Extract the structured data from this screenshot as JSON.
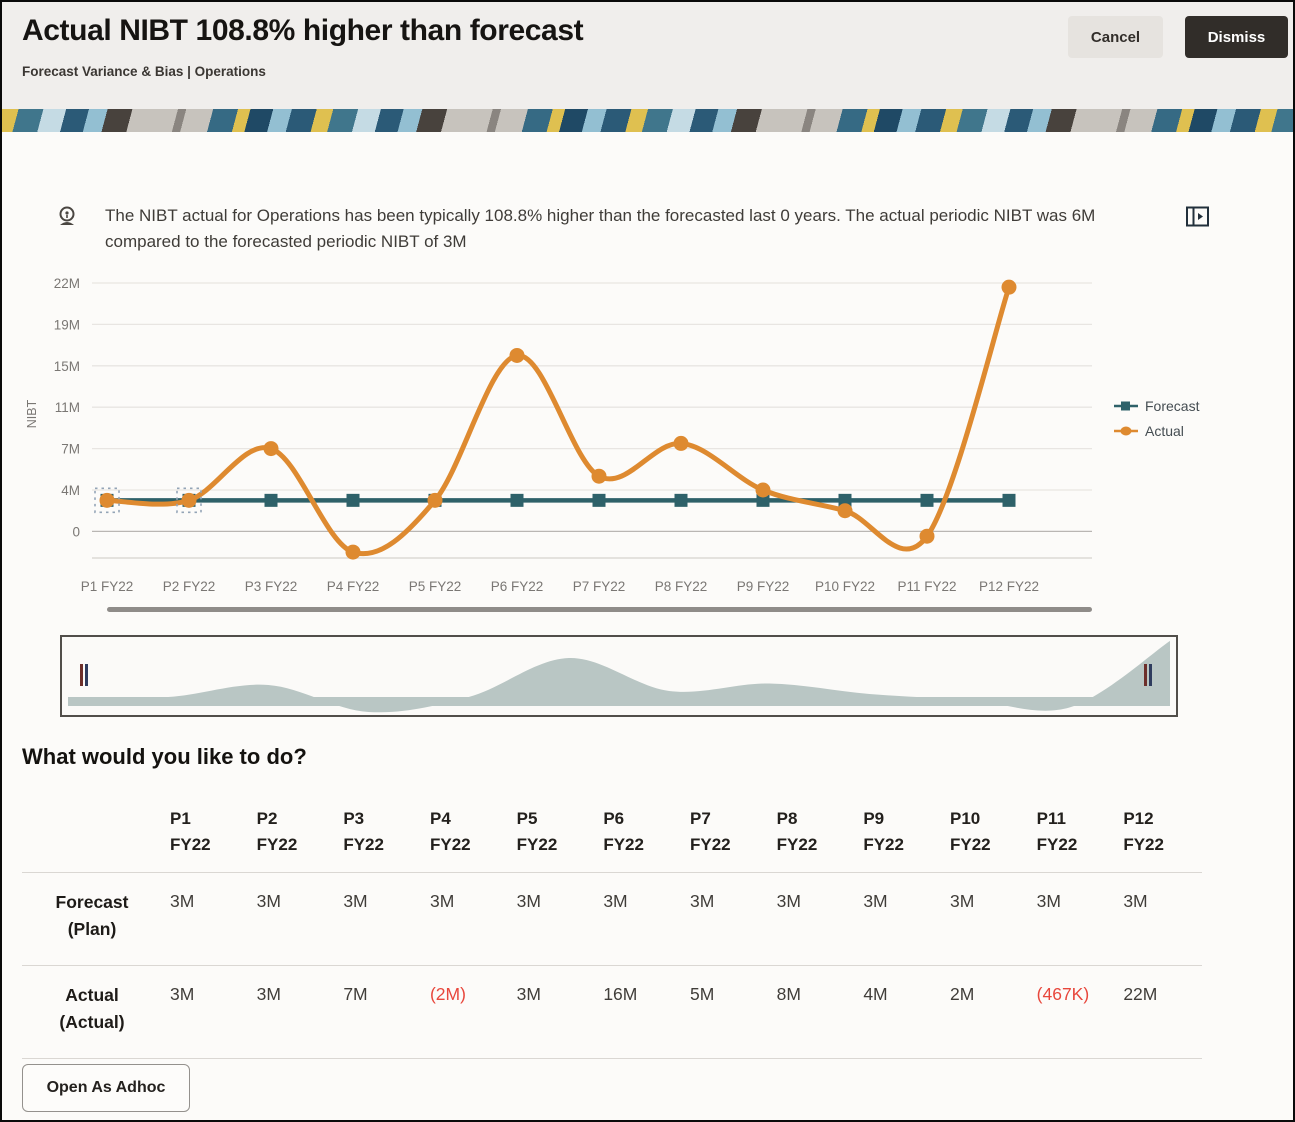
{
  "header": {
    "title": "Actual NIBT 108.8% higher than forecast",
    "breadcrumb": "Forecast Variance & Bias | Operations",
    "cancel_label": "Cancel",
    "dismiss_label": "Dismiss"
  },
  "insight": {
    "text": "The NIBT actual for Operations has been typically 108.8% higher than the forecasted last 0 years. The actual periodic NIBT was 6M compared to the forecasted periodic NIBT of 3M"
  },
  "chart_data": {
    "type": "line",
    "title": "",
    "xlabel": "",
    "ylabel": "NIBT",
    "categories": [
      "P1 FY22",
      "P2 FY22",
      "P3 FY22",
      "P4 FY22",
      "P5 FY22",
      "P6 FY22",
      "P7 FY22",
      "P8 FY22",
      "P9 FY22",
      "P10 FY22",
      "P11 FY22",
      "P12 FY22"
    ],
    "series": [
      {
        "name": "Forecast",
        "marker": "square",
        "color": "#2e6169",
        "values": [
          3,
          3,
          3,
          3,
          3,
          3,
          3,
          3,
          3,
          3,
          3,
          3
        ]
      },
      {
        "name": "Actual",
        "marker": "circle",
        "color": "#de8a30",
        "values": [
          3,
          3,
          7,
          -2,
          3,
          16,
          5,
          7.5,
          4,
          2,
          -0.467,
          21.7
        ]
      }
    ],
    "yticks": {
      "labels": [
        "22M",
        "19M",
        "15M",
        "11M",
        "7M",
        "4M",
        "0"
      ],
      "values": [
        22,
        19,
        15,
        11,
        7,
        4,
        0
      ]
    },
    "grid": true,
    "legend_position": "right",
    "selected_points": [
      0,
      1
    ],
    "slider": {
      "fill": "#b9c6c4",
      "handle_colors": [
        "#6d2f2b",
        "#2f3c5e"
      ]
    }
  },
  "section": {
    "question": "What would you like to do?"
  },
  "table": {
    "columns": [
      "P1\nFY22",
      "P2\nFY22",
      "P3\nFY22",
      "P4\nFY22",
      "P5\nFY22",
      "P6\nFY22",
      "P7\nFY22",
      "P8\nFY22",
      "P9\nFY22",
      "P10\nFY22",
      "P11\nFY22",
      "P12\nFY22"
    ],
    "rows": [
      {
        "label": "Forecast\n(Plan)",
        "values": [
          "3M",
          "3M",
          "3M",
          "3M",
          "3M",
          "3M",
          "3M",
          "3M",
          "3M",
          "3M",
          "3M",
          "3M"
        ]
      },
      {
        "label": "Actual\n(Actual)",
        "values": [
          "3M",
          "3M",
          "7M",
          "(2M)",
          "3M",
          "16M",
          "5M",
          "8M",
          "4M",
          "2M",
          "(467K)",
          "22M"
        ]
      }
    ],
    "negative_color": "#e8473c"
  },
  "footer": {
    "open_adhoc_label": "Open As Adhoc"
  },
  "colors": {
    "header_bg": "#f0eeec",
    "body_bg": "#fcfbf9",
    "dismiss_bg": "#312d29",
    "grid_line": "#e8e5e2",
    "zero_line": "#b9b6b3",
    "axis_text": "#7a7774",
    "scrollbar": "#8f8c89"
  }
}
